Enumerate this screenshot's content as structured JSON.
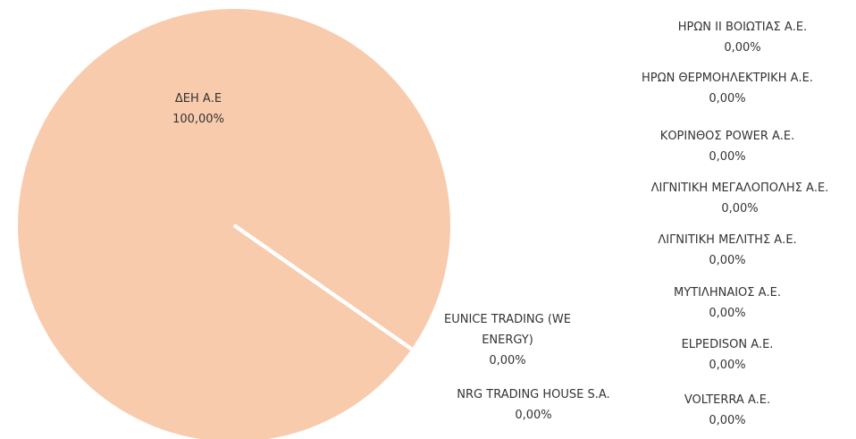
{
  "chart_data": {
    "type": "pie",
    "categories": [
      "ΔΕΗ Α.Ε",
      "EUNICE TRADING (WE ENERGY)",
      "NRG TRADING HOUSE S.A.",
      "VOLTERRA A.E.",
      "ELPEDISON A.E.",
      "ΜΥΤΙΛΗΝΑΙΟΣ Α.Ε.",
      "ΛΙΓΝΙΤΙΚΗ ΜΕΛΙΤΗΣ Α.Ε.",
      "ΛΙΓΝΙΤΙΚΗ ΜΕΓΑΛΟΠΟΛΗΣ Α.Ε.",
      "ΚΟΡΙΝΘΟΣ POWER A.E.",
      "ΗΡΩΝ ΘΕΡΜΟΗΛΕΚΤΡΙΚΗ Α.Ε.",
      "ΗΡΩΝ ΙΙ ΒΟΙΩΤΙΑΣ Α.Ε."
    ],
    "values": [
      100,
      0,
      0,
      0,
      0,
      0,
      0,
      0,
      0,
      0,
      0
    ],
    "value_labels": [
      "100,00%",
      "0,00%",
      "0,00%",
      "0,00%",
      "0,00%",
      "0,00%",
      "0,00%",
      "0,00%",
      "0,00%",
      "0,00%",
      "0,00%"
    ],
    "color": "#f8cbad"
  }
}
